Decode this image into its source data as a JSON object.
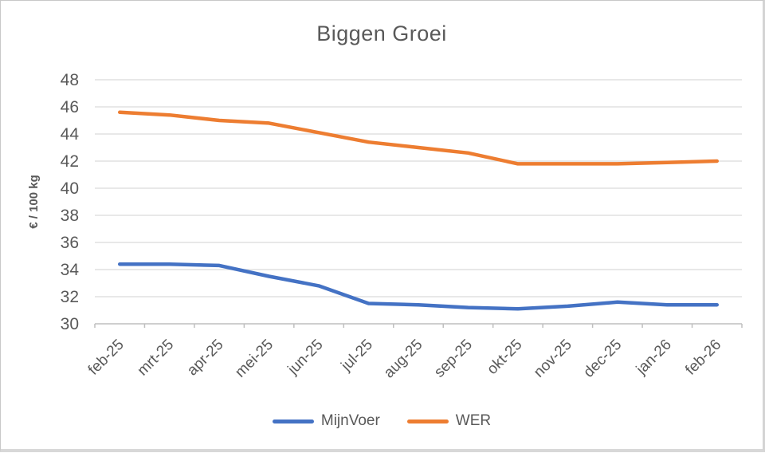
{
  "title": "Biggen Groei",
  "chart_data": {
    "type": "line",
    "categories": [
      "feb-25",
      "mrt-25",
      "apr-25",
      "mei-25",
      "jun-25",
      "jul-25",
      "aug-25",
      "sep-25",
      "okt-25",
      "nov-25",
      "dec-25",
      "jan-26",
      "feb-26"
    ],
    "series": [
      {
        "name": "MijnVoer",
        "color": "#4472C4",
        "values": [
          34.4,
          34.4,
          34.3,
          33.5,
          32.8,
          31.5,
          31.4,
          31.2,
          31.1,
          31.3,
          31.6,
          31.4,
          31.4
        ]
      },
      {
        "name": "WER",
        "color": "#ED7D31",
        "values": [
          45.6,
          45.4,
          45.0,
          44.8,
          44.1,
          43.4,
          43.0,
          42.6,
          41.8,
          41.8,
          41.8,
          41.9,
          42.0
        ]
      }
    ],
    "ylabel": "€ / 100 kg",
    "xlabel": "",
    "ylim": [
      30,
      48
    ],
    "y_ticks": [
      30,
      32,
      34,
      36,
      38,
      40,
      42,
      44,
      46,
      48
    ],
    "grid": true,
    "legend_position": "bottom",
    "text_color": "#595959",
    "gridline_color": "#D9D9D9",
    "axis_color": "#BFBFBF"
  }
}
